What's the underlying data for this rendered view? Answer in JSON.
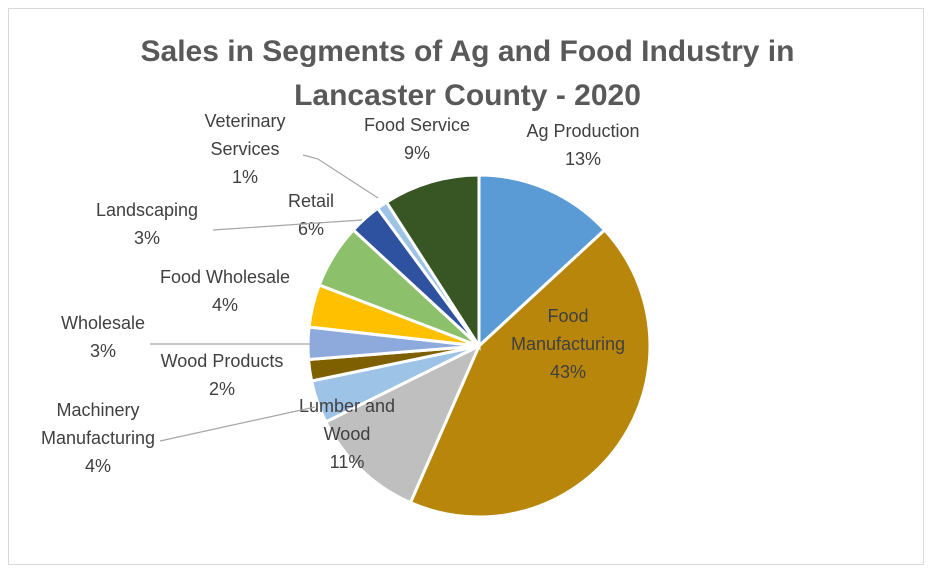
{
  "chart_data": {
    "type": "pie",
    "title": [
      "Sales in Segments of Ag and Food Industry in",
      "Lancaster County - 2020"
    ],
    "slices": [
      {
        "label": "Ag Production",
        "value": 13,
        "value_label": "13%",
        "color": "#5B9BD5",
        "label_lines": [
          "Ag Production",
          "13%"
        ]
      },
      {
        "label": "Food Manufacturing",
        "value": 43,
        "value_label": "43%",
        "color": "#B8860B",
        "label_lines": [
          "Food",
          "Manufacturing",
          "43%"
        ]
      },
      {
        "label": "Lumber and Wood",
        "value": 11,
        "value_label": "11%",
        "color": "#BFBFBF",
        "label_lines": [
          "Lumber and",
          "Wood",
          "11%"
        ]
      },
      {
        "label": "Machinery Manufacturing",
        "value": 4,
        "value_label": "4%",
        "color": "#9DC3E6",
        "label_lines": [
          "Machinery",
          "Manufacturing",
          "4%"
        ]
      },
      {
        "label": "Wood Products",
        "value": 2,
        "value_label": "2%",
        "color": "#7F6000",
        "label_lines": [
          "Wood Products",
          "2%"
        ]
      },
      {
        "label": "Wholesale",
        "value": 3,
        "value_label": "3%",
        "color": "#8EA9DB",
        "label_lines": [
          "Wholesale",
          "3%"
        ]
      },
      {
        "label": "Food Wholesale",
        "value": 4,
        "value_label": "4%",
        "color": "#FFC000",
        "label_lines": [
          "Food Wholesale",
          "4%"
        ]
      },
      {
        "label": "Retail",
        "value": 6,
        "value_label": "6%",
        "color": "#8CC06A",
        "label_lines": [
          "Retail",
          "6%"
        ]
      },
      {
        "label": "Landscaping",
        "value": 3,
        "value_label": "3%",
        "color": "#2F52A0",
        "label_lines": [
          "Landscaping",
          "3%"
        ]
      },
      {
        "label": "Veterinary Services",
        "value": 1,
        "value_label": "1%",
        "color": "#9DC3E6",
        "label_lines": [
          "Veterinary",
          "Services",
          "1%"
        ]
      },
      {
        "label": "Food Service",
        "value": 9,
        "value_label": "9%",
        "color": "#375623",
        "label_lines": [
          "Food Service",
          "9%"
        ]
      }
    ],
    "legend": "none"
  }
}
